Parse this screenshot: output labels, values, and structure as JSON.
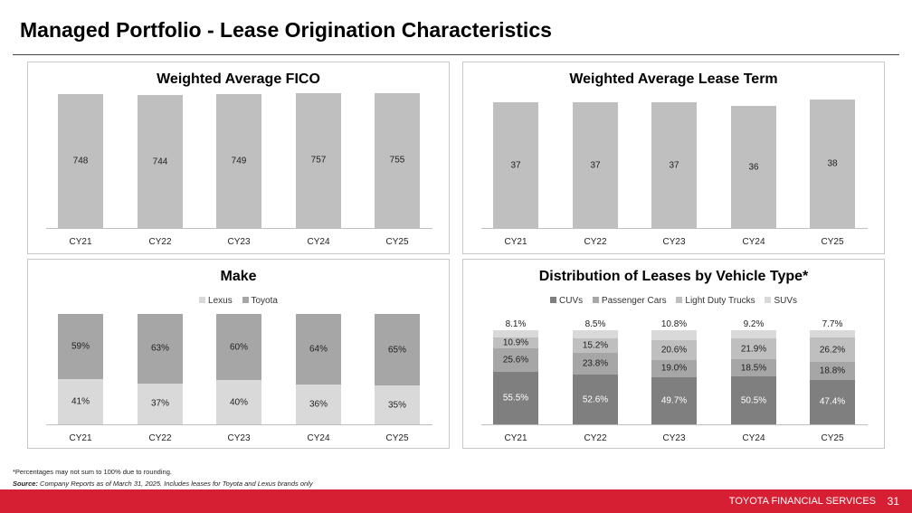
{
  "page": {
    "title": "Managed Portfolio - Lease Origination Characteristics",
    "footnote": "*Percentages may not sum to 100% due to rounding.",
    "source_label": "Source:",
    "source_text": " Company Reports as of March 31, 2025. Includes leases for Toyota and Lexus brands only",
    "footer_brand": "TOYOTA FINANCIAL SERVICES",
    "page_number": "31"
  },
  "colors": {
    "bar_gray": "#bfbfbf",
    "lexus": "#d9d9d9",
    "toyota": "#a6a6a6",
    "cuvs": "#7f7f7f",
    "passenger_cars": "#a6a6a6",
    "light_duty_trucks": "#bfbfbf",
    "suvs": "#d9d9d9",
    "footer_red": "#d71f33"
  },
  "chart_data": [
    {
      "id": "fico",
      "type": "bar",
      "title": "Weighted Average FICO",
      "categories": [
        "CY21",
        "CY22",
        "CY23",
        "CY24",
        "CY25"
      ],
      "values": [
        748,
        744,
        749,
        757,
        755
      ],
      "labels": [
        "748",
        "744",
        "749",
        "757",
        "755"
      ],
      "ylim": [
        0,
        760
      ]
    },
    {
      "id": "term",
      "type": "bar",
      "title": "Weighted Average Lease Term",
      "categories": [
        "CY21",
        "CY22",
        "CY23",
        "CY24",
        "CY25"
      ],
      "values": [
        37,
        37,
        37,
        36,
        38
      ],
      "labels": [
        "37",
        "37",
        "37",
        "36",
        "38"
      ],
      "ylim": [
        0,
        40
      ]
    },
    {
      "id": "make",
      "type": "bar",
      "stacked": true,
      "title": "Make",
      "categories": [
        "CY21",
        "CY22",
        "CY23",
        "CY24",
        "CY25"
      ],
      "series": [
        {
          "name": "Lexus",
          "values": [
            41,
            37,
            40,
            36,
            35
          ],
          "labels": [
            "41%",
            "37%",
            "40%",
            "36%",
            "35%"
          ]
        },
        {
          "name": "Toyota",
          "values": [
            59,
            63,
            60,
            64,
            65
          ],
          "labels": [
            "59%",
            "63%",
            "60%",
            "64%",
            "65%"
          ]
        }
      ],
      "ylim": [
        0,
        100
      ]
    },
    {
      "id": "vehicle_type",
      "type": "bar",
      "stacked": true,
      "title": "Distribution of Leases by Vehicle Type*",
      "categories": [
        "CY21",
        "CY22",
        "CY23",
        "CY24",
        "CY25"
      ],
      "series": [
        {
          "name": "CUVs",
          "values": [
            55.5,
            52.6,
            49.7,
            50.5,
            47.4
          ],
          "labels": [
            "55.5%",
            "52.6%",
            "49.7%",
            "50.5%",
            "47.4%"
          ]
        },
        {
          "name": "Passenger Cars",
          "values": [
            25.6,
            23.8,
            19.0,
            18.5,
            18.8
          ],
          "labels": [
            "25.6%",
            "23.8%",
            "19.0%",
            "18.5%",
            "18.8%"
          ]
        },
        {
          "name": "Light Duty Trucks",
          "values": [
            10.9,
            15.2,
            20.6,
            21.9,
            26.2
          ],
          "labels": [
            "10.9%",
            "15.2%",
            "20.6%",
            "21.9%",
            "26.2%"
          ]
        },
        {
          "name": "SUVs",
          "values": [
            8.1,
            8.5,
            10.8,
            9.2,
            7.7
          ],
          "labels": [
            "8.1%",
            "8.5%",
            "10.8%",
            "9.2%",
            "7.7%"
          ]
        }
      ],
      "ylim": [
        0,
        100
      ]
    }
  ]
}
